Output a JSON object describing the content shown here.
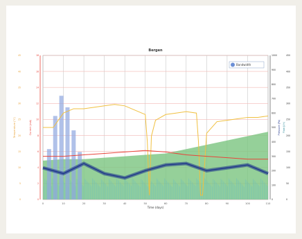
{
  "chart_data": {
    "type": "line",
    "title": "Bergen",
    "xlabel": "Time (days)",
    "ylabels": {
      "left_outer": "Temperature (°C)",
      "left_inner": "Current (mA)",
      "right_inner": "Pressure (Pa)",
      "right_outer": "Flow (l/h)"
    },
    "legend": {
      "text": "Bandwidth",
      "placement": "top-right"
    },
    "grid": true,
    "xlim": [
      0,
      110
    ],
    "x_ticks": [
      "0",
      "10",
      "20",
      "30",
      "40",
      "50",
      "60",
      "70",
      "80",
      "90",
      "100",
      "110"
    ],
    "left_outer_ticks": [
      "0",
      "5",
      "10",
      "15",
      "20",
      "25",
      "30",
      "35",
      "40",
      "45"
    ],
    "left_inner_ticks": [
      "0",
      "2",
      "4",
      "6",
      "8",
      "10",
      "12",
      "14",
      "16",
      "18"
    ],
    "right_inner_ticks": [
      "0",
      "100",
      "200",
      "300",
      "400",
      "500",
      "600",
      "700",
      "800",
      "900",
      "1000"
    ],
    "right_outer_ticks": [
      "0",
      "50",
      "100",
      "150",
      "200",
      "250",
      "300",
      "350",
      "400",
      "450"
    ],
    "ylim": [
      0,
      100
    ],
    "series": [
      {
        "kind": "area",
        "color": "#7bc47f",
        "x": [
          0,
          10,
          20,
          30,
          40,
          50,
          60,
          70,
          80,
          90,
          100,
          110
        ],
        "values": [
          27,
          28,
          28,
          29,
          30,
          31,
          32,
          35,
          38,
          41,
          44,
          47
        ]
      },
      {
        "kind": "line",
        "color": "#f0c040",
        "x": [
          0,
          5,
          10,
          15,
          20,
          25,
          30,
          35,
          40,
          45,
          50,
          51,
          52,
          53,
          55,
          60,
          65,
          70,
          75,
          76,
          77,
          78,
          80,
          85,
          90,
          95,
          100,
          105,
          110
        ],
        "values": [
          50,
          50,
          60,
          63,
          63,
          64,
          65,
          66,
          65,
          62,
          59,
          40,
          3,
          44,
          55,
          59,
          60,
          61,
          60,
          40,
          3,
          3,
          46,
          54,
          55,
          56,
          57,
          57,
          58
        ]
      },
      {
        "kind": "line",
        "color": "#e8443a",
        "x": [
          0,
          10,
          20,
          30,
          40,
          50,
          60,
          70,
          80,
          90,
          100,
          110
        ],
        "values": [
          30,
          30,
          31,
          32,
          33,
          34,
          33,
          31,
          30,
          29,
          28,
          28
        ]
      },
      {
        "kind": "line",
        "color": "#1a2f8a",
        "x": [
          0,
          10,
          20,
          30,
          40,
          50,
          60,
          70,
          80,
          90,
          100,
          110
        ],
        "values": [
          22,
          18,
          25,
          18,
          15,
          20,
          24,
          25,
          20,
          22,
          24,
          18
        ]
      },
      {
        "kind": "spike",
        "color": "#8fa6e0",
        "x": [
          3,
          6,
          9,
          12,
          15,
          18
        ],
        "values": [
          35,
          58,
          72,
          64,
          48,
          33
        ]
      }
    ]
  }
}
